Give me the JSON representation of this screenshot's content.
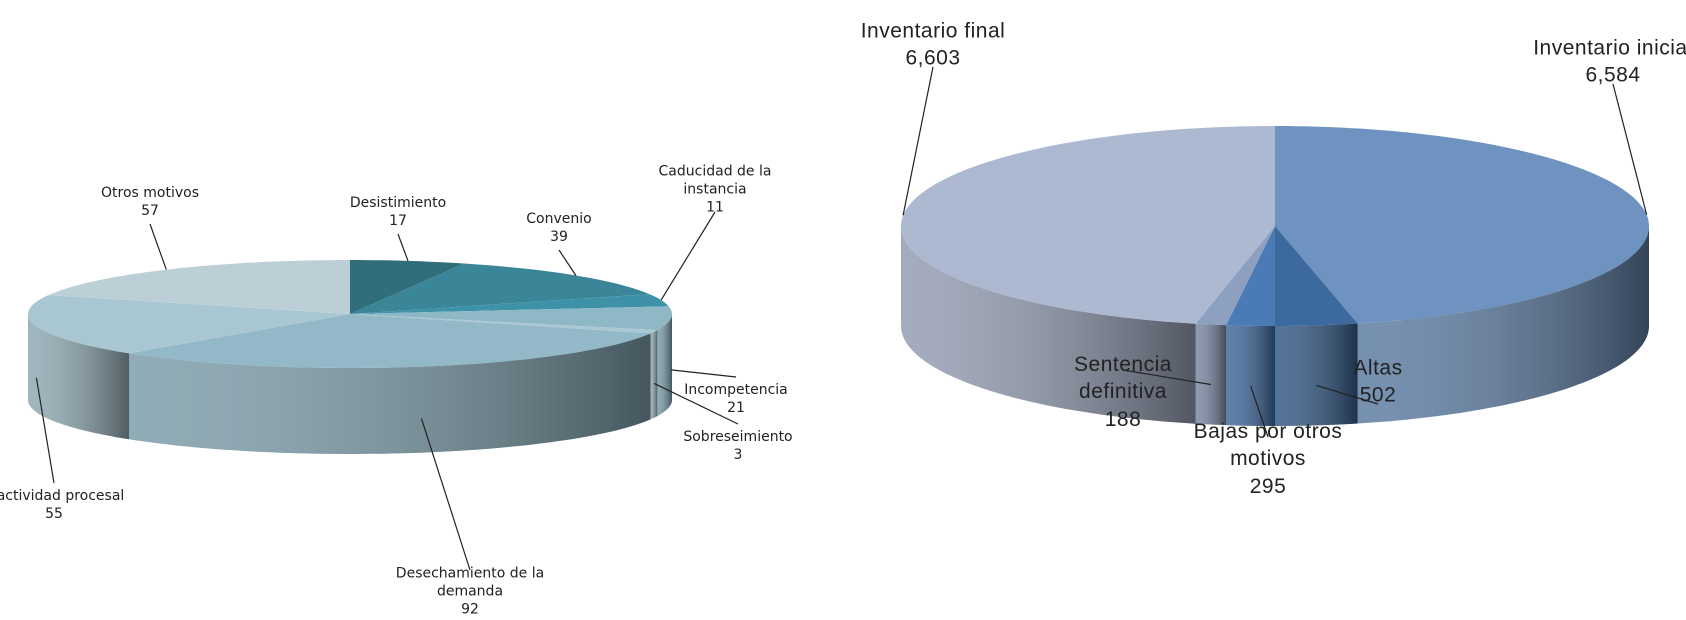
{
  "chart_data": [
    {
      "type": "pie3d",
      "categories": [
        "Desistimiento",
        "Convenio",
        "Caducidad de la instancia",
        "Incompetencia",
        "Sobreseimiento",
        "Desechamiento de la demanda",
        "Inactividad procesal",
        "Otros motivos"
      ],
      "values": [
        17,
        39,
        11,
        21,
        3,
        92,
        55,
        57
      ],
      "colors": [
        "#2f6e7a",
        "#3a8597",
        "#3d92a8",
        "#8fb8c6",
        "#a9c8d3",
        "#93b9c8",
        "#a9c7d2",
        "#bccfd7"
      ]
    },
    {
      "type": "pie3d",
      "categories": [
        "Inventario inicial",
        "Altas",
        "Bajas por otros motivos",
        "Sentencia definitiva",
        "Inventario final"
      ],
      "values": [
        6584,
        502,
        295,
        188,
        6603
      ],
      "value_labels": [
        "6,584",
        "502",
        "295",
        "188",
        "6,603"
      ],
      "colors": [
        "#6f93c0",
        "#3d6a9e",
        "#4a7bb7",
        "#8ea0c0",
        "#adb9d1"
      ]
    }
  ]
}
